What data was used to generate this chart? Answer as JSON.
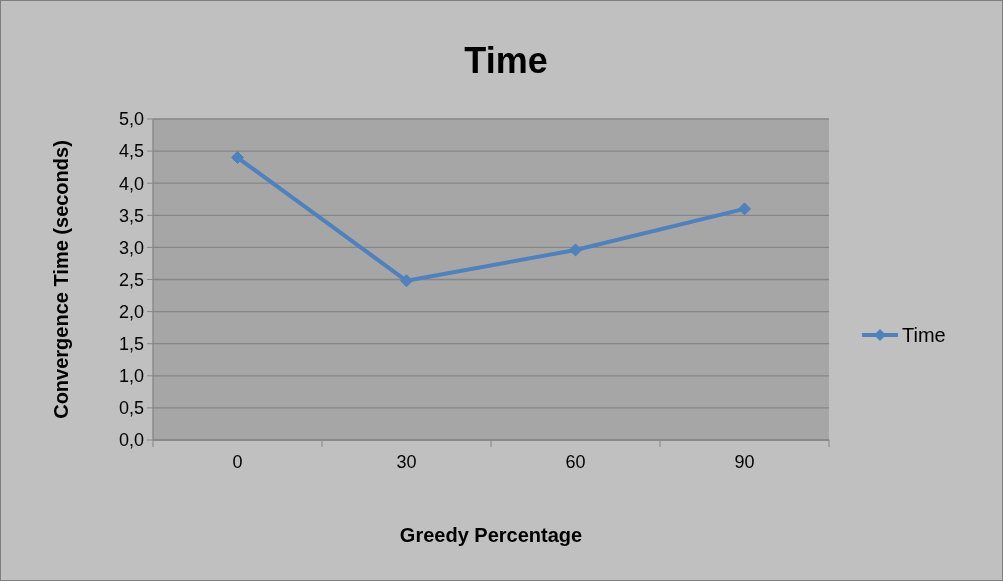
{
  "chart_data": {
    "type": "line",
    "title": "Time",
    "xlabel": "Greedy Percentage",
    "ylabel": "Convergence Time (seconds)",
    "categories": [
      "0",
      "30",
      "60",
      "90"
    ],
    "series": [
      {
        "name": "Time",
        "color": "#4f81bd",
        "values": [
          4.4,
          2.48,
          2.96,
          3.6
        ]
      }
    ],
    "ylim": [
      0,
      5
    ],
    "yticks": [
      {
        "value": 0,
        "label": "0,0"
      },
      {
        "value": 0.5,
        "label": "0,5"
      },
      {
        "value": 1,
        "label": "1,0"
      },
      {
        "value": 1.5,
        "label": "1,5"
      },
      {
        "value": 2,
        "label": "2,0"
      },
      {
        "value": 2.5,
        "label": "2,5"
      },
      {
        "value": 3,
        "label": "3,0"
      },
      {
        "value": 3.5,
        "label": "3,5"
      },
      {
        "value": 4,
        "label": "4,0"
      },
      {
        "value": 4.5,
        "label": "4,5"
      },
      {
        "value": 5,
        "label": "5,0"
      }
    ],
    "grid": "y",
    "legend": "right",
    "marker": "diamond",
    "line_style": "solid"
  }
}
